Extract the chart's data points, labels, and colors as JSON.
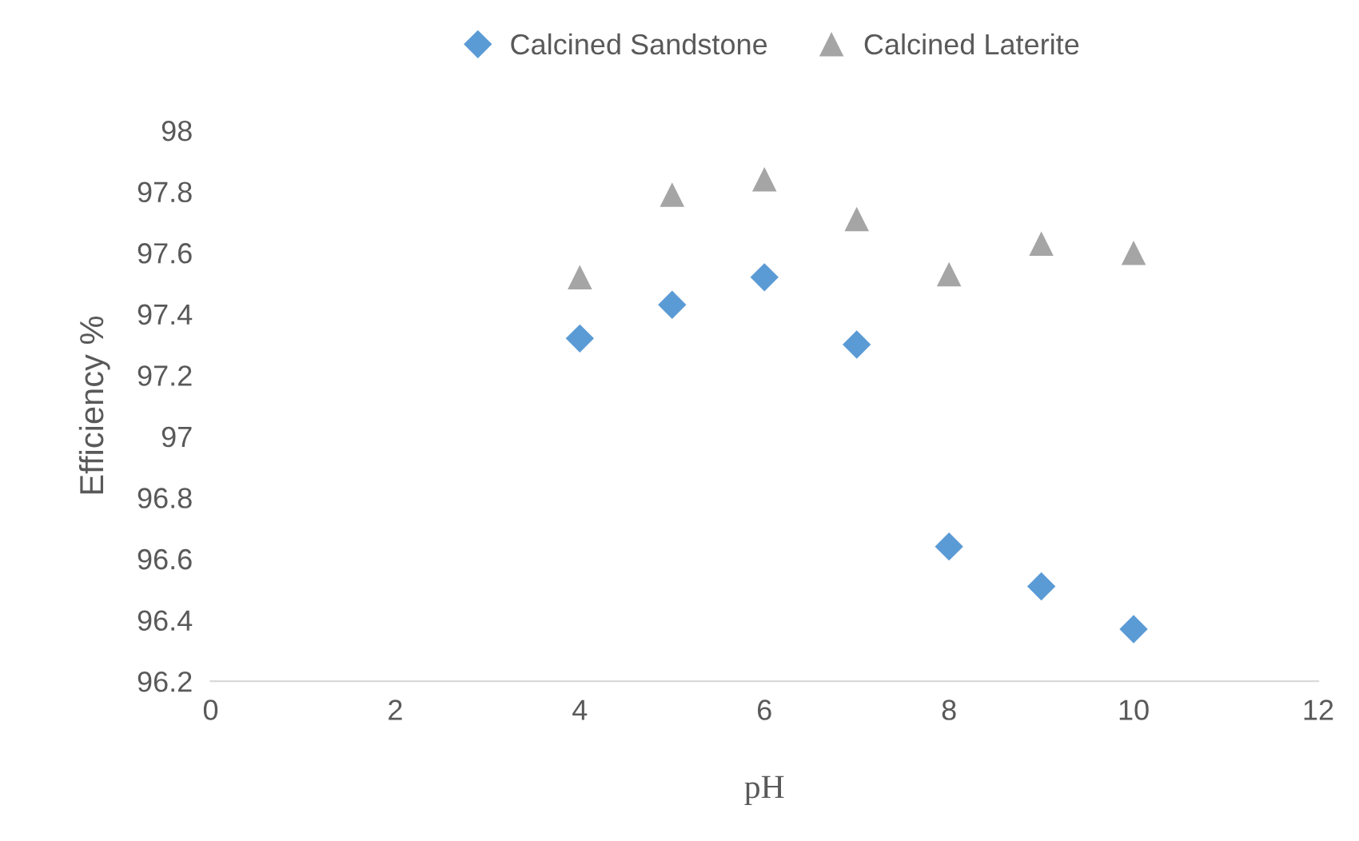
{
  "chart_data": {
    "type": "scatter",
    "xlabel": "pH",
    "ylabel": "Efficiency %",
    "x": [
      4,
      5,
      6,
      7,
      8,
      9,
      10
    ],
    "series": [
      {
        "name": "Calcined Sandstone",
        "color": "#5b9bd5",
        "marker": "diamond",
        "values": [
          97.32,
          97.43,
          97.52,
          97.3,
          96.64,
          96.51,
          96.37
        ]
      },
      {
        "name": "Calcined Laterite",
        "color": "#a5a5a5",
        "marker": "triangle",
        "values": [
          97.52,
          97.79,
          97.84,
          97.71,
          97.53,
          97.63,
          97.6
        ]
      }
    ],
    "xlim": [
      0,
      12
    ],
    "xticks": [
      0,
      2,
      4,
      6,
      8,
      10,
      12
    ],
    "ylim": [
      96.2,
      98
    ],
    "yticks": [
      96.2,
      96.4,
      96.6,
      96.8,
      97,
      97.2,
      97.4,
      97.6,
      97.8,
      98
    ],
    "grid": false,
    "legend": "top"
  }
}
